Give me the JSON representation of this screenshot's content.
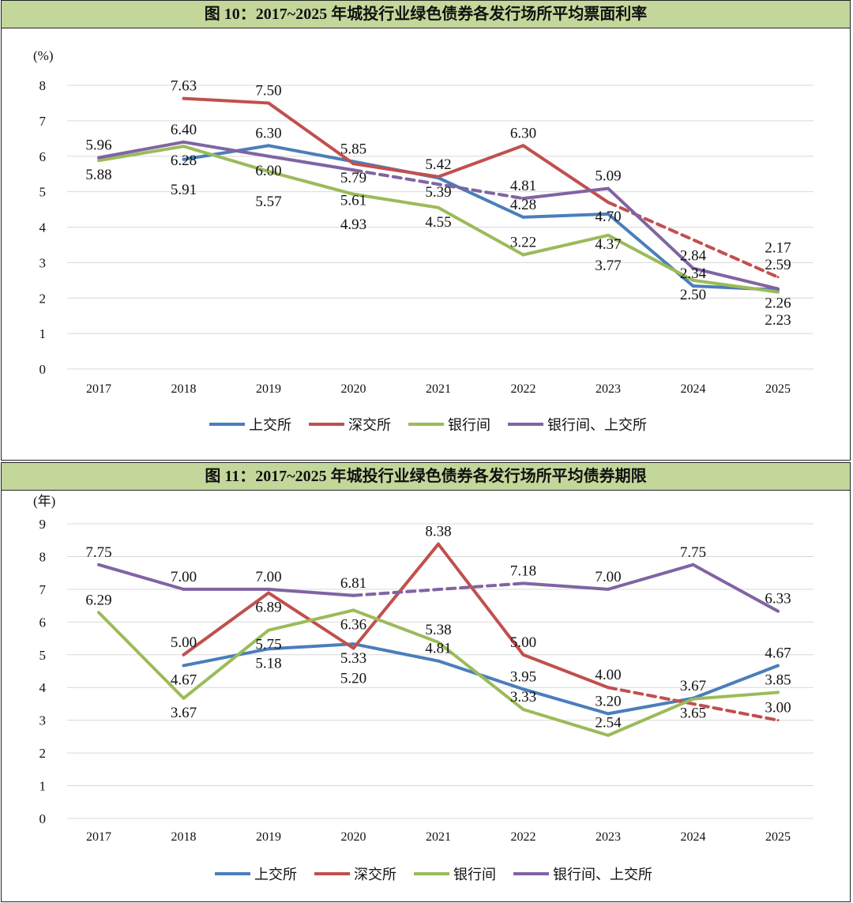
{
  "colors": {
    "上交所": "#4a7ebb",
    "深交所": "#c0504d",
    "银行间": "#9bbb59",
    "银行间、上交所": "#8064a2",
    "title_bg": "#c4d79b"
  },
  "chart_data": [
    {
      "type": "line",
      "title": "图 10：2017~2025 年城投行业绿色债券各发行场所平均票面利率",
      "ylabel": "(%)",
      "ylim": [
        0,
        8
      ],
      "yticks": [
        "0",
        "1",
        "2",
        "3",
        "4",
        "5",
        "6",
        "7",
        "8"
      ],
      "categories": [
        "2017",
        "2018",
        "2019",
        "2020",
        "2021",
        "2022",
        "2023",
        "2024",
        "2025"
      ],
      "grid": true,
      "legend": "bottom",
      "note": "",
      "series": [
        {
          "name": "上交所",
          "values": [
            null,
            5.91,
            6.3,
            5.85,
            5.39,
            4.28,
            4.37,
            2.34,
            2.23
          ]
        },
        {
          "name": "深交所",
          "values": [
            null,
            7.63,
            7.5,
            5.79,
            5.42,
            6.3,
            4.7,
            null,
            2.59
          ]
        },
        {
          "name": "银行间",
          "values": [
            5.88,
            6.28,
            5.57,
            4.93,
            4.55,
            3.22,
            3.77,
            2.5,
            2.17
          ]
        },
        {
          "name": "银行间、上交所",
          "values": [
            5.96,
            6.4,
            6.0,
            5.61,
            null,
            4.81,
            5.09,
            2.84,
            2.26
          ]
        }
      ]
    },
    {
      "type": "line",
      "title": "图 11：2017~2025 年城投行业绿色债券各发行场所平均债券期限",
      "ylabel": "(年)",
      "ylim": [
        0,
        9
      ],
      "yticks": [
        "0",
        "1",
        "2",
        "3",
        "4",
        "5",
        "6",
        "7",
        "8",
        "9"
      ],
      "categories": [
        "2017",
        "2018",
        "2019",
        "2020",
        "2021",
        "2022",
        "2023",
        "2024",
        "2025"
      ],
      "grid": true,
      "legend": "bottom",
      "series": [
        {
          "name": "上交所",
          "values": [
            null,
            4.67,
            5.18,
            5.33,
            4.81,
            3.95,
            3.2,
            3.67,
            4.67
          ]
        },
        {
          "name": "深交所",
          "values": [
            null,
            5.0,
            6.89,
            5.2,
            8.38,
            5.0,
            4.0,
            null,
            3.0
          ]
        },
        {
          "name": "银行间",
          "values": [
            6.29,
            3.67,
            5.75,
            6.36,
            5.38,
            3.33,
            2.54,
            3.65,
            3.85
          ]
        },
        {
          "name": "银行间、上交所",
          "values": [
            7.75,
            7.0,
            7.0,
            6.81,
            null,
            7.18,
            7.0,
            7.75,
            6.33
          ]
        }
      ]
    }
  ]
}
